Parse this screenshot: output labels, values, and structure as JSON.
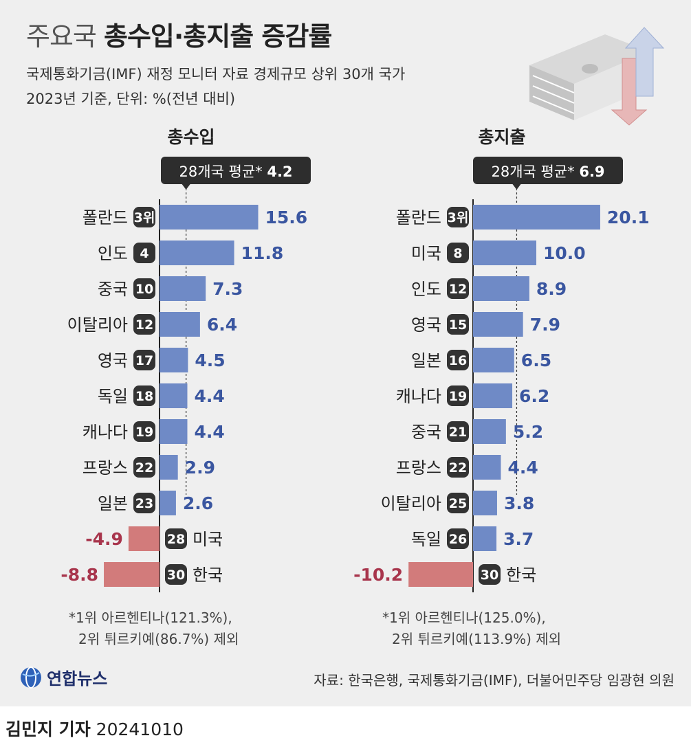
{
  "title": {
    "light": "주요국",
    "bold": "총수입·총지출 증감률"
  },
  "subtitle": [
    "국제통화기금(IMF) 재정 모니터 자료 경제규모 상위 30개 국가",
    "2023년 기준, 단위: %(전년 대비)"
  ],
  "colors": {
    "positive": "#6f8ac6",
    "negative": "#d27b7b",
    "pos_label": "#3a56a0",
    "neg_label": "#a8354c",
    "badge": "#333333"
  },
  "chart_data": [
    {
      "type": "bar",
      "orientation": "horizontal",
      "title": "총수입",
      "average": {
        "label": "28개국 평균*",
        "value": 4.2
      },
      "unit": "%",
      "categories": [
        "폴란드",
        "인도",
        "중국",
        "이탈리아",
        "영국",
        "독일",
        "캐나다",
        "프랑스",
        "일본",
        "미국",
        "한국"
      ],
      "ranks": [
        "3위",
        "4",
        "10",
        "12",
        "17",
        "18",
        "19",
        "22",
        "23",
        "28",
        "30"
      ],
      "values": [
        15.6,
        11.8,
        7.3,
        6.4,
        4.5,
        4.4,
        4.4,
        2.9,
        2.6,
        -4.9,
        -8.8
      ],
      "footnote": [
        "*1위 아르헨티나(121.3%),",
        "2위 튀르키예(86.7%) 제외"
      ]
    },
    {
      "type": "bar",
      "orientation": "horizontal",
      "title": "총지출",
      "average": {
        "label": "28개국 평균*",
        "value": 6.9
      },
      "unit": "%",
      "categories": [
        "폴란드",
        "미국",
        "인도",
        "영국",
        "일본",
        "캐나다",
        "중국",
        "프랑스",
        "이탈리아",
        "독일",
        "한국"
      ],
      "ranks": [
        "3위",
        "8",
        "12",
        "15",
        "16",
        "19",
        "21",
        "22",
        "25",
        "26",
        "30"
      ],
      "values": [
        20.1,
        10.0,
        8.9,
        7.9,
        6.5,
        6.2,
        5.2,
        4.4,
        3.8,
        3.7,
        -10.2
      ],
      "footnote": [
        "*1위 아르헨티나(125.0%),",
        "2위 튀르키예(113.9%) 제외"
      ]
    }
  ],
  "logo": {
    "text": "연합뉴스",
    "icon": "yonhap-globe-icon"
  },
  "source": "자료: 한국은행, 국제통화기금(IMF), 더불어민주당 임광현 의원",
  "byline": {
    "name": "김민지 기자",
    "date": "20241010"
  }
}
